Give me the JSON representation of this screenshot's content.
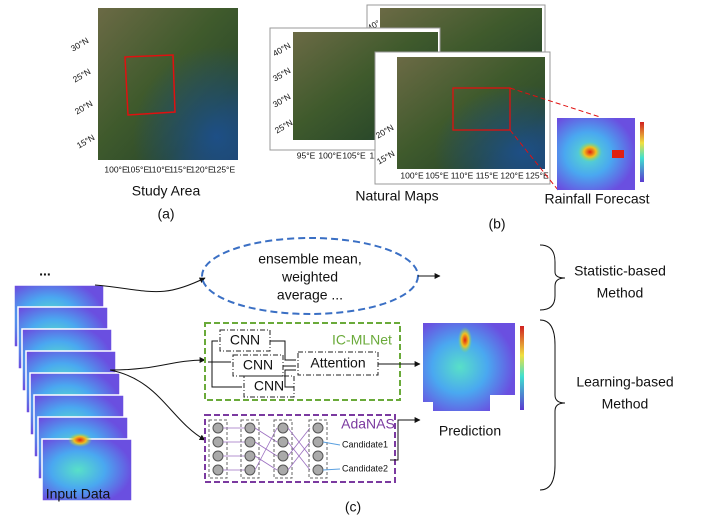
{
  "panel_a": {
    "lat_labels": [
      "30°N",
      "25°N",
      "20°N",
      "15°N"
    ],
    "lon_labels": [
      "100°E",
      "105°E",
      "110°E",
      "115°E",
      "120°E",
      "125°E"
    ],
    "caption": "Study Area",
    "label": "(a)"
  },
  "panel_b": {
    "back_lat_labels": [
      "40°N",
      "35°N",
      "30°N",
      "25°N"
    ],
    "back_lon_labels": [
      "95°E",
      "100°E",
      "105°E",
      "110°"
    ],
    "top_lat_label": "40°",
    "front_lat_labels": [
      "20°N",
      "15°N"
    ],
    "front_lon_labels": [
      "100°E",
      "105°E",
      "110°E",
      "115°E",
      "120°E",
      "125°E"
    ],
    "caption_maps": "Natural Maps",
    "caption_forecast": "Rainfall Forecast",
    "label": "(b)"
  },
  "panel_c": {
    "ellipsis": "...",
    "statistic_text": [
      "ensemble mean,",
      "weighted",
      "average ..."
    ],
    "statistic_method": [
      "Statistic-based",
      "Method"
    ],
    "icmlnet": {
      "title": "IC-MLNet",
      "cnn": [
        "CNN",
        "CNN",
        "CNN"
      ],
      "attention": "Attention"
    },
    "adanas": {
      "title": "AdaNAS",
      "candidates": [
        "Candidate1",
        "Candidate2"
      ]
    },
    "prediction": "Prediction",
    "learning_method": [
      "Learning-based",
      "Method"
    ],
    "input": "Input Data",
    "label": "(c)"
  }
}
